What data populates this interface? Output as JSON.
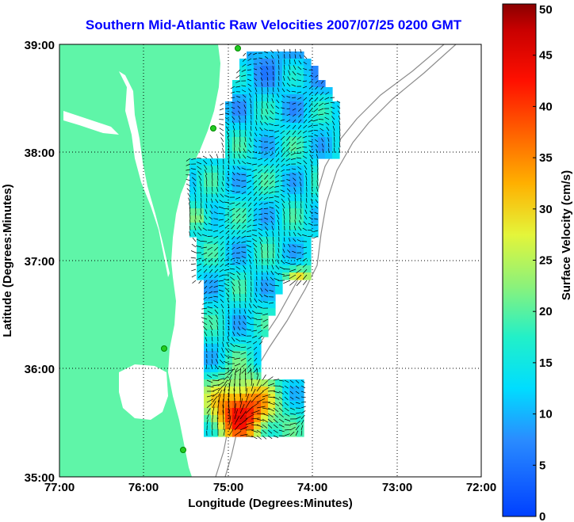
{
  "title": "Southern Mid-Atlantic Raw Velocities 2007/07/25 0200 GMT",
  "xlabel": "Longitude (Degrees:Minutes)",
  "ylabel": "Latitude (Degrees:Minutes)",
  "x_ticks": [
    "77:00",
    "76:00",
    "75:00",
    "74:00",
    "73:00",
    "72:00"
  ],
  "y_ticks": [
    "39:00",
    "38:00",
    "37:00",
    "36:00",
    "35:00"
  ],
  "colorbar": {
    "label": "Surface Velocity (cm/s)",
    "ticks": [
      "0",
      "5",
      "10",
      "15",
      "20",
      "25",
      "30",
      "35",
      "40",
      "45",
      "50"
    ],
    "range": [
      0,
      50
    ]
  },
  "colors": {
    "land": "#5ff5a8",
    "title": "#0000ff",
    "bathymetry": "#8c8c8c",
    "station": "#22cc22"
  },
  "chart_data": {
    "type": "heatmap",
    "xlim": [
      -77,
      -72
    ],
    "ylim": [
      35,
      39
    ],
    "grid": true,
    "value_range": [
      0,
      50
    ]
  }
}
